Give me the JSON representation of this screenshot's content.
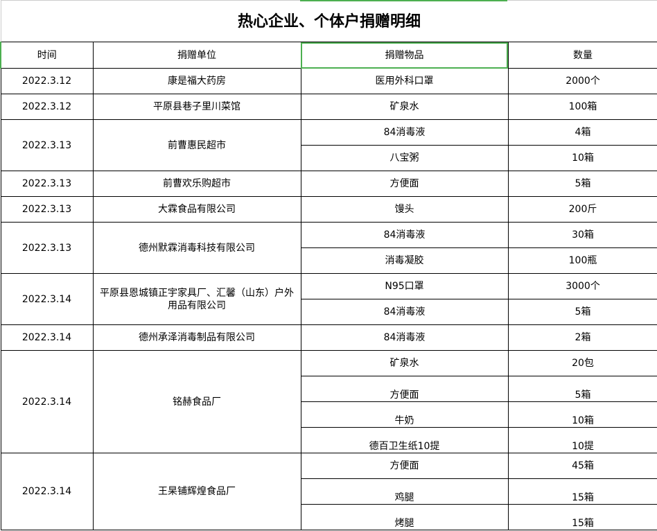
{
  "title": "热心企业、个体户捐赠明细",
  "headers": {
    "date": "时间",
    "donor": "捐赠单位",
    "item": "捐赠物品",
    "qty": "数量"
  },
  "accent_color": "#4caf50",
  "groups": [
    {
      "date": "2022.3.12",
      "donor": "康是福大药房",
      "items": [
        {
          "item": "医用外科口罩",
          "qty": "2000个"
        }
      ]
    },
    {
      "date": "2022.3.12",
      "donor": "平原县巷子里川菜馆",
      "items": [
        {
          "item": "矿泉水",
          "qty": "100箱"
        }
      ]
    },
    {
      "date": "2022.3.13",
      "donor": "前曹惠民超市",
      "items": [
        {
          "item": "84消毒液",
          "qty": "4箱"
        },
        {
          "item": "八宝粥",
          "qty": "10箱"
        }
      ]
    },
    {
      "date": "2022.3.13",
      "donor": "前曹欢乐购超市",
      "items": [
        {
          "item": "方便面",
          "qty": "5箱"
        }
      ]
    },
    {
      "date": "2022.3.13",
      "donor": "大霖食品有限公司",
      "items": [
        {
          "item": "馒头",
          "qty": "200斤"
        }
      ]
    },
    {
      "date": "2022.3.13",
      "donor": "德州默霖消毒科技有限公司",
      "items": [
        {
          "item": "84消毒液",
          "qty": "30箱"
        },
        {
          "item": "消毒凝胶",
          "qty": "100瓶"
        }
      ]
    },
    {
      "date": "2022.3.14",
      "donor": "平原县恩城镇正宇家具厂、汇馨（山东）户外用品有限公司",
      "items": [
        {
          "item": "N95口罩",
          "qty": "3000个"
        },
        {
          "item": "84消毒液",
          "qty": "5箱"
        }
      ]
    },
    {
      "date": "2022.3.14",
      "donor": "德州承泽消毒制品有限公司",
      "items": [
        {
          "item": "84消毒液",
          "qty": "2箱"
        }
      ]
    },
    {
      "date": "2022.3.14",
      "donor": "铭赫食品厂",
      "items": [
        {
          "item": "矿泉水",
          "qty": "20包"
        },
        {
          "item": "方便面",
          "qty": "5箱"
        },
        {
          "item": "牛奶",
          "qty": "10箱"
        },
        {
          "item": "德百卫生纸10提",
          "qty": "10提"
        }
      ]
    },
    {
      "date": "2022.3.14",
      "donor": "王杲铺辉煌食品厂",
      "items": [
        {
          "item": "方便面",
          "qty": "45箱"
        },
        {
          "item": "鸡腿",
          "qty": "15箱"
        },
        {
          "item": "烤腿",
          "qty": "15箱"
        }
      ]
    }
  ]
}
